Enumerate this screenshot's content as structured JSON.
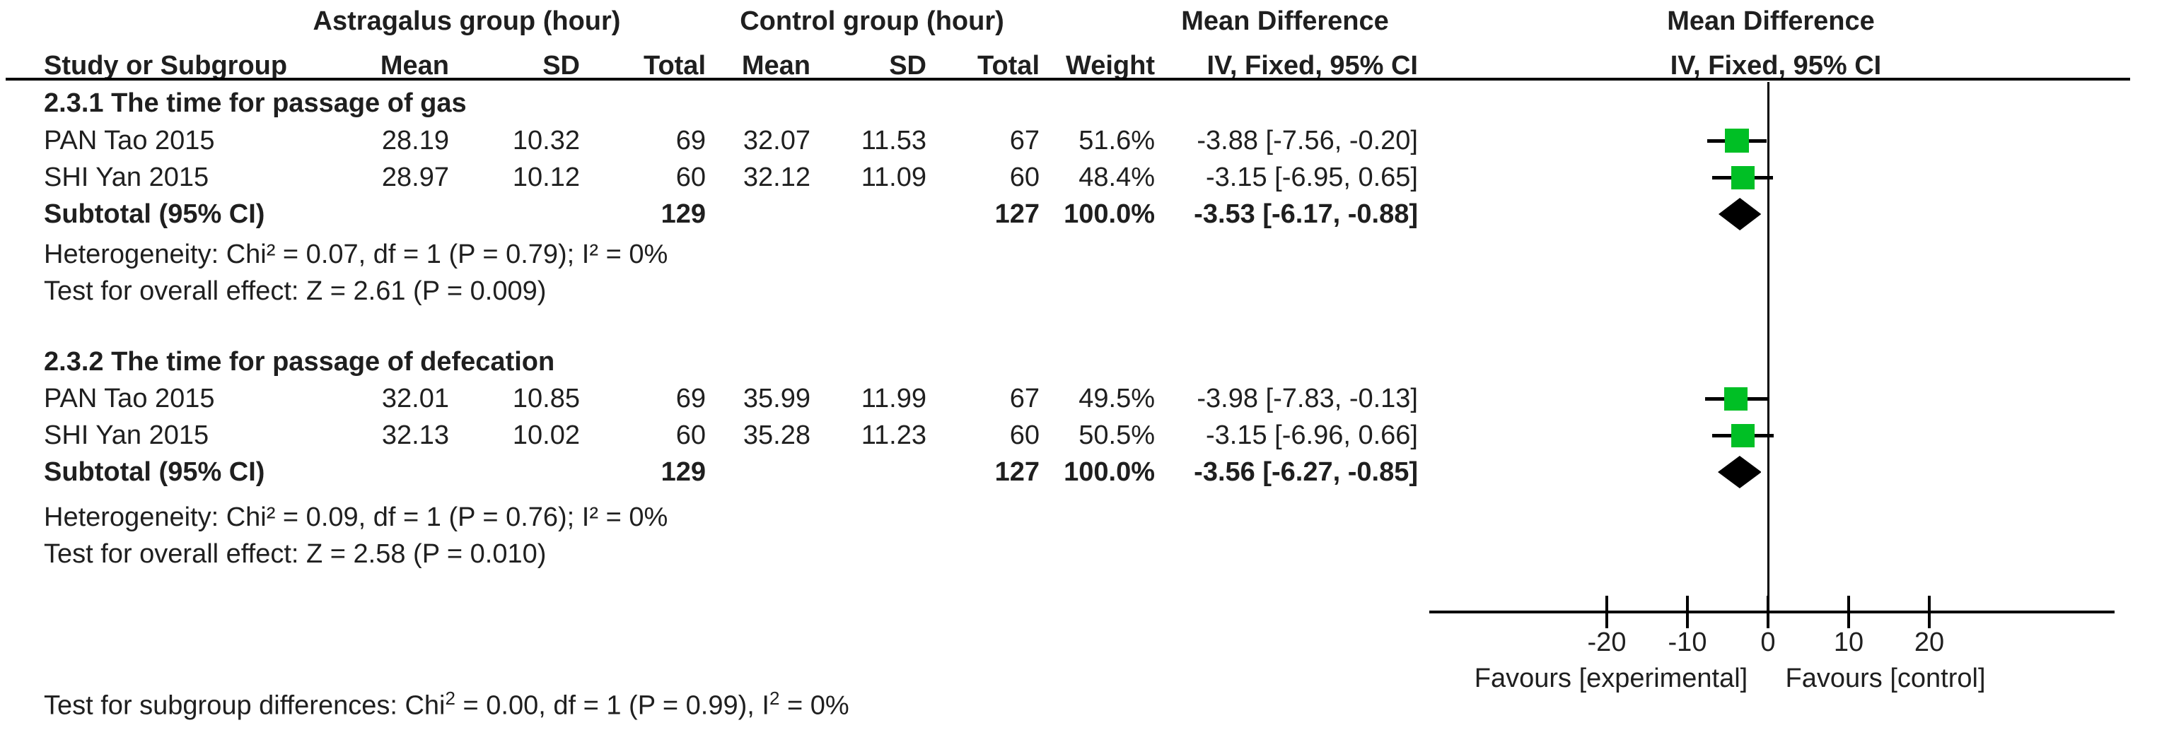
{
  "header": {
    "group_exp": "Astragalus group (hour)",
    "group_ctrl": "Control group (hour)",
    "md_left": "Mean Difference",
    "md_right": "Mean Difference",
    "columns": {
      "study": "Study or Subgroup",
      "mean_e": "Mean",
      "sd_e": "SD",
      "total_e": "Total",
      "mean_c": "Mean",
      "sd_c": "SD",
      "total_c": "Total",
      "weight": "Weight",
      "ci_left": "IV, Fixed, 95% CI",
      "ci_right": "IV, Fixed, 95% CI"
    }
  },
  "chart_data": {
    "type": "forest",
    "effect_measure": "Mean Difference (IV, Fixed, 95% CI)",
    "axis": {
      "ticks": [
        -20,
        -10,
        0,
        10,
        20
      ],
      "xlim": [
        -42,
        43
      ],
      "favours_left": "Favours [experimental]",
      "favours_right": "Favours [control]"
    },
    "subgroups": [
      {
        "title": "2.3.1 The time for passage of gas",
        "studies": [
          {
            "study": "PAN Tao 2015",
            "mean_e": "28.19",
            "sd_e": "10.32",
            "total_e": "69",
            "mean_c": "32.07",
            "sd_c": "11.53",
            "total_c": "67",
            "weight": "51.6%",
            "weight_pct": 51.6,
            "md": -3.88,
            "ci_low": -7.56,
            "ci_high": -0.2,
            "md_text": "-3.88 [-7.56, -0.20]"
          },
          {
            "study": "SHI Yan 2015",
            "mean_e": "28.97",
            "sd_e": "10.12",
            "total_e": "60",
            "mean_c": "32.12",
            "sd_c": "11.09",
            "total_c": "60",
            "weight": "48.4%",
            "weight_pct": 48.4,
            "md": -3.15,
            "ci_low": -6.95,
            "ci_high": 0.65,
            "md_text": "-3.15 [-6.95, 0.65]"
          }
        ],
        "subtotal": {
          "label": "Subtotal (95% CI)",
          "total_e": "129",
          "total_c": "127",
          "weight": "100.0%",
          "md": -3.53,
          "ci_low": -6.17,
          "ci_high": -0.88,
          "md_text": "-3.53 [-6.17, -0.88]"
        },
        "heterogeneity": "Heterogeneity: Chi² = 0.07, df = 1 (P = 0.79); I² = 0%",
        "overall_effect": "Test for overall effect: Z = 2.61 (P = 0.009)"
      },
      {
        "title": "2.3.2 The time for passage of defecation",
        "studies": [
          {
            "study": "PAN Tao 2015",
            "mean_e": "32.01",
            "sd_e": "10.85",
            "total_e": "69",
            "mean_c": "35.99",
            "sd_c": "11.99",
            "total_c": "67",
            "weight": "49.5%",
            "weight_pct": 49.5,
            "md": -3.98,
            "ci_low": -7.83,
            "ci_high": -0.13,
            "md_text": "-3.98 [-7.83, -0.13]"
          },
          {
            "study": "SHI Yan 2015",
            "mean_e": "32.13",
            "sd_e": "10.02",
            "total_e": "60",
            "mean_c": "35.28",
            "sd_c": "11.23",
            "total_c": "60",
            "weight": "50.5%",
            "weight_pct": 50.5,
            "md": -3.15,
            "ci_low": -6.96,
            "ci_high": 0.66,
            "md_text": "-3.15 [-6.96, 0.66]"
          }
        ],
        "subtotal": {
          "label": "Subtotal (95% CI)",
          "total_e": "129",
          "total_c": "127",
          "weight": "100.0%",
          "md": -3.56,
          "ci_low": -6.27,
          "ci_high": -0.85,
          "md_text": "-3.56 [-6.27, -0.85]"
        },
        "heterogeneity": "Heterogeneity: Chi² = 0.09, df = 1 (P = 0.76); I² = 0%",
        "overall_effect": "Test for overall effect: Z = 2.58 (P = 0.010)"
      }
    ]
  },
  "footer": {
    "parts": [
      "Test for subgroup differences: Chi",
      "2",
      " = 0.00, df = 1 (P = 0.99), I",
      "2",
      " = 0%"
    ]
  },
  "colors": {
    "square_green": "#00bf25",
    "diamond_black": "#000000",
    "line_black": "#000000",
    "text": "#1f1f1f"
  }
}
